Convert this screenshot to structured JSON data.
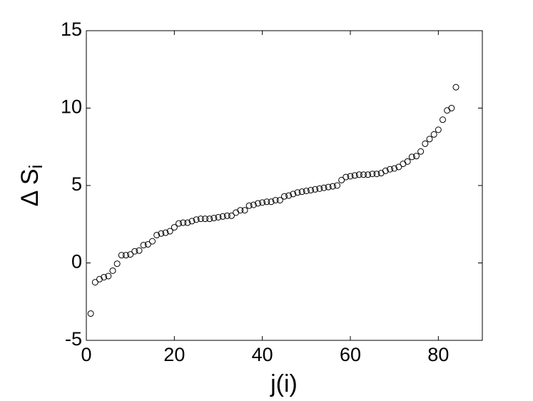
{
  "chart_data": {
    "type": "scatter",
    "x_label": "j(i)",
    "y_label": "Δ S",
    "y_label_subscript": "i",
    "xlim": [
      0,
      90
    ],
    "ylim": [
      -5,
      15
    ],
    "xticks": [
      0,
      20,
      40,
      60,
      80
    ],
    "yticks": [
      -5,
      0,
      5,
      10,
      15
    ],
    "marker_color": "#000000",
    "x": [
      1,
      2,
      3,
      4,
      5,
      6,
      7,
      8,
      9,
      10,
      11,
      12,
      13,
      14,
      15,
      16,
      17,
      18,
      19,
      20,
      21,
      22,
      23,
      24,
      25,
      26,
      27,
      28,
      29,
      30,
      31,
      32,
      33,
      34,
      35,
      36,
      37,
      38,
      39,
      40,
      41,
      42,
      43,
      44,
      45,
      46,
      47,
      48,
      49,
      50,
      51,
      52,
      53,
      54,
      55,
      56,
      57,
      58,
      59,
      60,
      61,
      62,
      63,
      64,
      65,
      66,
      67,
      68,
      69,
      70,
      71,
      72,
      73,
      74,
      75,
      76,
      77,
      78,
      79,
      80,
      81,
      82,
      83,
      84
    ],
    "y": [
      -3.27,
      -1.25,
      -1.05,
      -0.92,
      -0.85,
      -0.5,
      -0.05,
      0.5,
      0.5,
      0.55,
      0.75,
      0.8,
      1.15,
      1.2,
      1.4,
      1.8,
      1.9,
      1.95,
      2.05,
      2.3,
      2.55,
      2.6,
      2.6,
      2.7,
      2.8,
      2.85,
      2.85,
      2.85,
      2.9,
      2.95,
      3.0,
      3.05,
      3.05,
      3.25,
      3.4,
      3.4,
      3.7,
      3.75,
      3.85,
      3.9,
      3.95,
      3.95,
      4.05,
      4.05,
      4.3,
      4.35,
      4.45,
      4.55,
      4.6,
      4.65,
      4.7,
      4.75,
      4.8,
      4.85,
      4.9,
      4.95,
      5.0,
      5.35,
      5.55,
      5.6,
      5.65,
      5.7,
      5.7,
      5.7,
      5.75,
      5.75,
      5.8,
      5.95,
      6.05,
      6.1,
      6.2,
      6.4,
      6.55,
      6.85,
      6.9,
      7.2,
      7.7,
      8.0,
      8.3,
      8.6,
      9.25,
      9.85,
      10.0,
      11.35
    ]
  }
}
